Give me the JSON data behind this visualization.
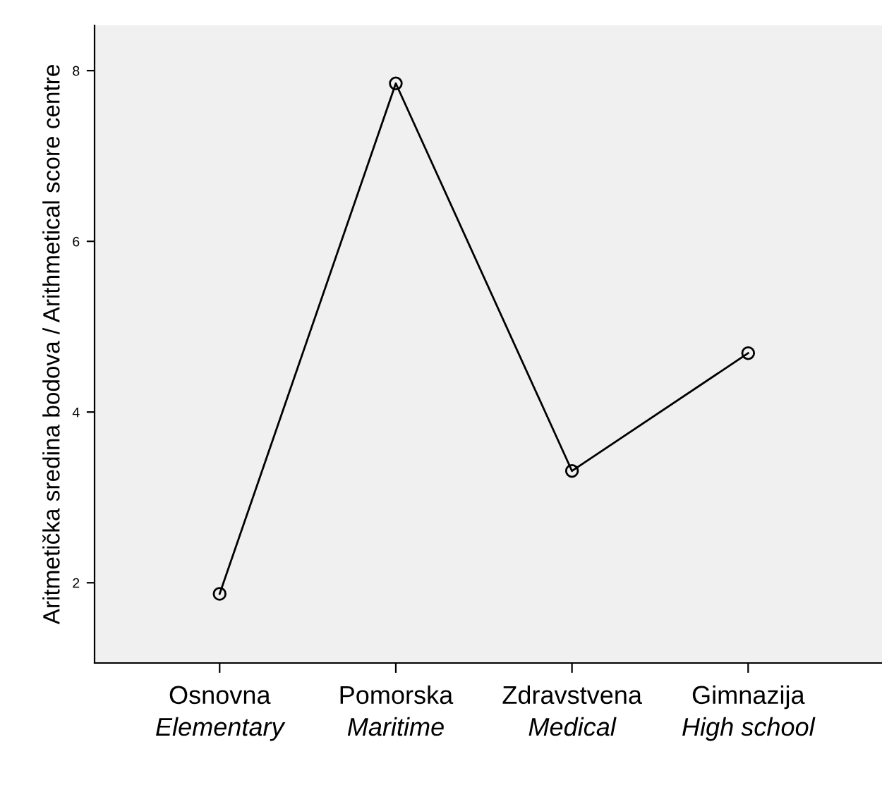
{
  "chart_data": {
    "type": "line",
    "categories": [
      "Osnovna\nElementary",
      "Pomorska\nMaritime",
      "Zdravstvena\nMedical",
      "Gimnazija\nHigh school"
    ],
    "values": [
      1.87,
      7.85,
      3.31,
      4.69
    ],
    "color": "#000000",
    "marker": "circle",
    "line_style": "solid",
    "ylabel": "Aritmetička sredina bodova / Arithmetical score centre",
    "ylim": [
      1.06,
      8.53
    ],
    "yticks": [
      2,
      4,
      6,
      8
    ],
    "grid": false,
    "legend": false
  }
}
